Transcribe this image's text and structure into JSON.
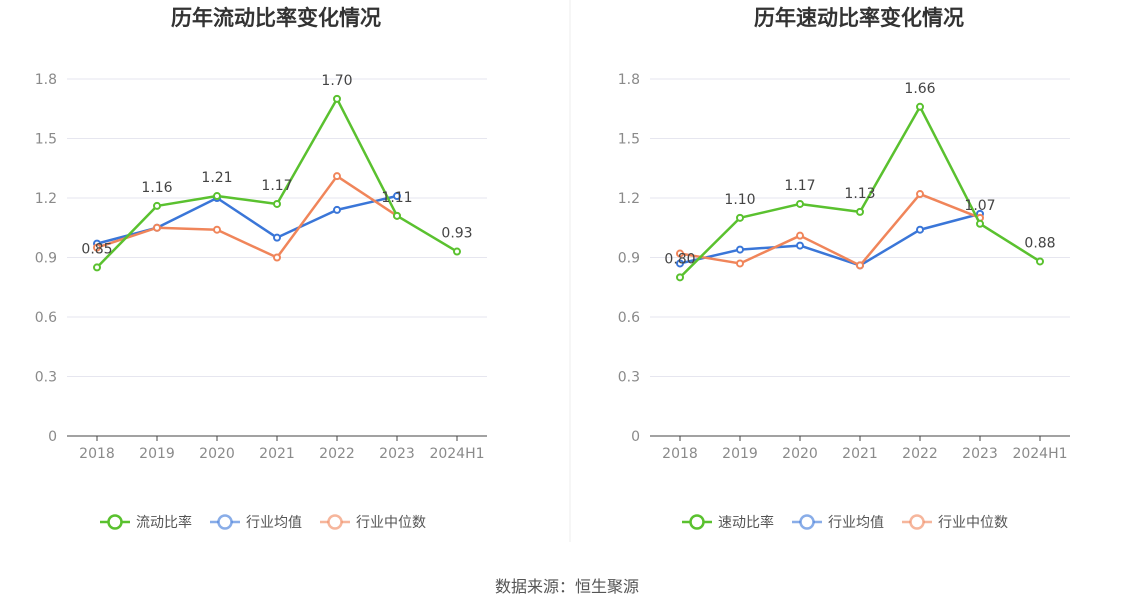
{
  "colors": {
    "primary": "#5ac12f",
    "industry_avg": "#3a76d8",
    "industry_median": "#f0855a",
    "grid": "#e6e6ef",
    "axis": "#444444",
    "divider": "#eeeeee"
  },
  "source": "数据来源：恒生聚源",
  "chart_data": [
    {
      "type": "line",
      "title": "历年流动比率变化情况",
      "categories": [
        "2018",
        "2019",
        "2020",
        "2021",
        "2022",
        "2023",
        "2024H1"
      ],
      "ylim": [
        0,
        1.8
      ],
      "yticks": [
        "0",
        "0.3",
        "0.6",
        "0.9",
        "1.2",
        "1.5",
        "1.8"
      ],
      "grid": true,
      "legend_position": "bottom",
      "series": [
        {
          "name": "流动比率",
          "color": "#5ac12f",
          "values": [
            0.85,
            1.16,
            1.21,
            1.17,
            1.7,
            1.11,
            0.93
          ],
          "labels": [
            "0.85",
            "1.16",
            "1.21",
            "1.17",
            "1.70",
            "1.11",
            "0.93"
          ]
        },
        {
          "name": "行业均值",
          "color": "#3a76d8",
          "values": [
            0.97,
            1.05,
            1.2,
            1.0,
            1.14,
            1.21,
            null
          ]
        },
        {
          "name": "行业中位数",
          "color": "#f0855a",
          "values": [
            0.95,
            1.05,
            1.04,
            0.9,
            1.31,
            1.11,
            null
          ]
        }
      ]
    },
    {
      "type": "line",
      "title": "历年速动比率变化情况",
      "categories": [
        "2018",
        "2019",
        "2020",
        "2021",
        "2022",
        "2023",
        "2024H1"
      ],
      "ylim": [
        0,
        1.8
      ],
      "yticks": [
        "0",
        "0.3",
        "0.6",
        "0.9",
        "1.2",
        "1.5",
        "1.8"
      ],
      "grid": true,
      "legend_position": "bottom",
      "series": [
        {
          "name": "速动比率",
          "color": "#5ac12f",
          "values": [
            0.8,
            1.1,
            1.17,
            1.13,
            1.66,
            1.07,
            0.88
          ],
          "labels": [
            "0.80",
            "1.10",
            "1.17",
            "1.13",
            "1.66",
            "1.07",
            "0.88"
          ]
        },
        {
          "name": "行业均值",
          "color": "#3a76d8",
          "values": [
            0.87,
            0.94,
            0.96,
            0.86,
            1.04,
            1.12,
            null
          ]
        },
        {
          "name": "行业中位数",
          "color": "#f0855a",
          "values": [
            0.92,
            0.87,
            1.01,
            0.86,
            1.22,
            1.1,
            null
          ]
        }
      ]
    }
  ]
}
